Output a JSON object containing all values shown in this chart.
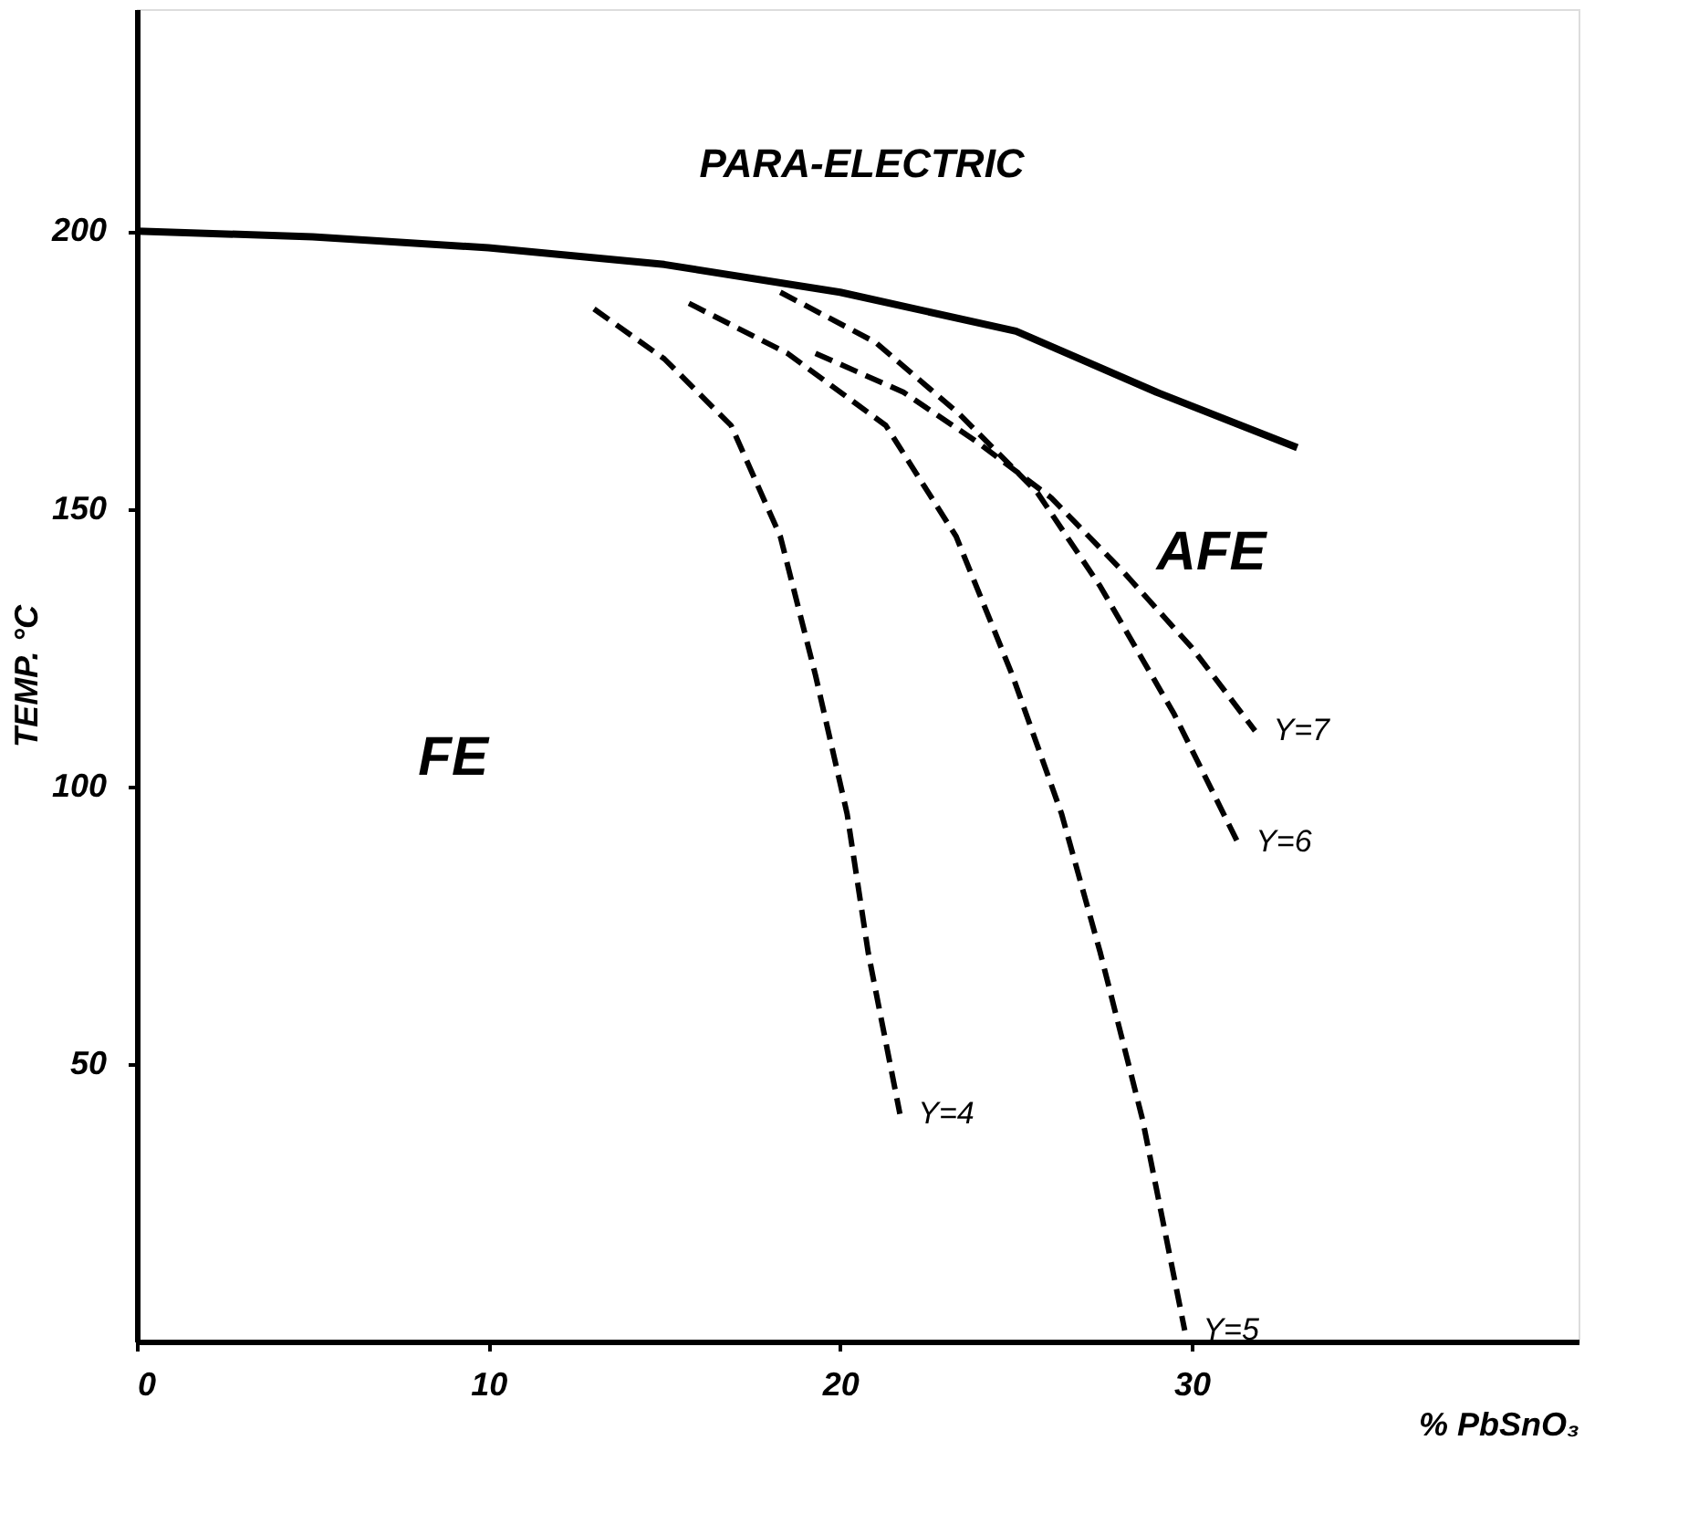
{
  "chart_data": {
    "type": "line",
    "xlabel": "% PbSnO₃",
    "ylabel": "TEMP. °C",
    "xlim": [
      0,
      41
    ],
    "ylim": [
      0,
      240
    ],
    "xticks": [
      0,
      10,
      20,
      30
    ],
    "yticks": [
      50,
      100,
      150,
      200
    ],
    "grid": false,
    "marker": "none",
    "series": [
      {
        "color": "#000000",
        "line_style": "solid",
        "x": [
          0,
          5,
          10,
          15,
          20,
          25,
          29,
          33
        ],
        "values": [
          200,
          199,
          197,
          194,
          189,
          182,
          171,
          161
        ]
      },
      {
        "name": "Y=4",
        "color": "#000000",
        "line_style": "dashed",
        "x": [
          13,
          15,
          16.9,
          18.3,
          19.3,
          20.2,
          20.8,
          21.7
        ],
        "values": [
          186,
          177,
          165,
          145,
          120,
          95,
          70,
          41
        ]
      },
      {
        "name": "Y=5",
        "color": "#000000",
        "line_style": "dashed",
        "x": [
          15.7,
          18.5,
          21.3,
          23.3,
          24.9,
          26.3,
          27.4,
          28.6,
          29.8
        ],
        "values": [
          187,
          178,
          165,
          145,
          120,
          95,
          70,
          40,
          2
        ]
      },
      {
        "name": "Y=6",
        "color": "#000000",
        "line_style": "dashed",
        "x": [
          18.3,
          21,
          23.4,
          25.6,
          27.4,
          29.5,
          31.3
        ],
        "values": [
          189,
          180,
          167,
          153,
          136,
          113,
          90
        ]
      },
      {
        "name": "Y=7",
        "color": "#000000",
        "line_style": "dashed",
        "x": [
          19.3,
          21.8,
          23.9,
          26,
          28,
          30,
          31.8
        ],
        "values": [
          178,
          171,
          162,
          152,
          139,
          125,
          110
        ]
      }
    ],
    "annotations": [
      "PARA-ELECTRIC",
      "AFE",
      "FE"
    ]
  }
}
